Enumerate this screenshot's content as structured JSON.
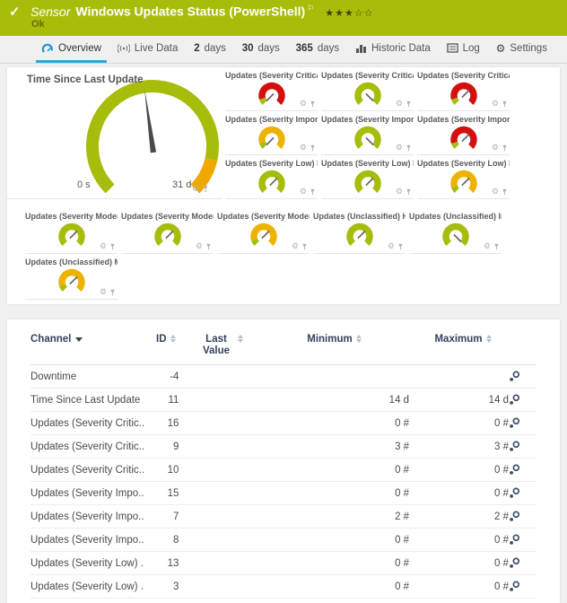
{
  "colors": {
    "header_green": "#a8bd0a",
    "gauge_green": "#a7bd0b",
    "gauge_red": "#d40f0f",
    "gauge_yellow": "#eeb200",
    "gauge_orange": "#f0a800",
    "tab_active_blue": "#2ba7df",
    "table_header_navy": "#33425b"
  },
  "header": {
    "status_icon": "check-icon",
    "sensor_label": "Sensor",
    "title": "Windows Updates Status (PowerShell)",
    "flag_icon": "flag-icon",
    "rating": "★★★☆☆",
    "status": "Ok"
  },
  "tabs": [
    {
      "label": "Overview",
      "icon": "gauge-icon",
      "active": true
    },
    {
      "label": "Live Data",
      "icon": "signal-icon",
      "active": false
    },
    {
      "num": "2",
      "label": "days",
      "active": false
    },
    {
      "num": "30",
      "label": "days",
      "active": false
    },
    {
      "num": "365",
      "label": "days",
      "active": false
    },
    {
      "label": "Historic Data",
      "icon": "bar-chart-icon",
      "active": false
    },
    {
      "label": "Log",
      "icon": "log-icon",
      "active": false
    },
    {
      "label": "Settings",
      "icon": "gear-icon",
      "active": false
    }
  ],
  "main_gauge": {
    "title": "Time Since Last Update",
    "min_label": "0 s",
    "max_label": "31 d",
    "needle_compass_deg": 352,
    "segments": [
      {
        "color": "#a7bd0b",
        "from_deg": 225,
        "to_deg": 102.6
      },
      {
        "color": "#f0a800",
        "from_deg": 102.6,
        "to_deg": 135
      }
    ],
    "action_icons": [
      "gear-icon",
      "pin-icon"
    ]
  },
  "small_gauges": [
    {
      "label": "Updates (Severity Critical) Hi...",
      "status": "red",
      "needle_deg": 225
    },
    {
      "label": "Updates (Severity Critical) Ins...",
      "status": "green",
      "needle_deg": 135
    },
    {
      "label": "Updates (Severity Critical) Mi...",
      "status": "red",
      "needle_deg": 45
    },
    {
      "label": "Updates (Severity Important) ...",
      "status": "yellow",
      "needle_deg": 225
    },
    {
      "label": "Updates (Severity Important) ...",
      "status": "green",
      "needle_deg": 135
    },
    {
      "label": "Updates (Severity Important) ...",
      "status": "red",
      "needle_deg": 45
    },
    {
      "label": "Updates (Severity Low) Hidden",
      "status": "green",
      "needle_deg": 45
    },
    {
      "label": "Updates (Severity Low) Install...",
      "status": "green",
      "needle_deg": 45
    },
    {
      "label": "Updates (Severity Low) Missi...",
      "status": "yellow",
      "needle_deg": 45
    },
    {
      "label": "Updates (Severity Moderate) ...",
      "status": "green",
      "needle_deg": 45
    },
    {
      "label": "Updates (Severity Moderate) I...",
      "status": "green",
      "needle_deg": 45
    },
    {
      "label": "Updates (Severity Moderate) ...",
      "status": "yellow",
      "needle_deg": 45
    },
    {
      "label": "Updates (Unclassified) Hidden",
      "status": "green",
      "needle_deg": 45
    },
    {
      "label": "Updates (Unclassified) Install...",
      "status": "green",
      "needle_deg": 135
    },
    {
      "label": "Updates (Unclassified) Missing",
      "status": "yellow",
      "needle_deg": 45
    }
  ],
  "table": {
    "columns": [
      {
        "label": "Channel",
        "sort": "desc"
      },
      {
        "label": "ID",
        "sort": "both"
      },
      {
        "label": "Last Value",
        "sort": "both"
      },
      {
        "label": "Minimum",
        "sort": "both"
      },
      {
        "label": "Maximum",
        "sort": "both"
      }
    ],
    "row_action_icon": "channel-settings-icon",
    "rows": [
      {
        "channel": "Downtime",
        "id": "-4",
        "last": "",
        "min": "",
        "max": ""
      },
      {
        "channel": "Time Since Last Update",
        "id": "11",
        "last": "",
        "min": "14 d",
        "max": "14 d"
      },
      {
        "channel": "Updates (Severity Critic...",
        "id": "16",
        "last": "",
        "min": "0 #",
        "max": "0 #"
      },
      {
        "channel": "Updates (Severity Critic...",
        "id": "9",
        "last": "",
        "min": "3 #",
        "max": "3 #"
      },
      {
        "channel": "Updates (Severity Critic...",
        "id": "10",
        "last": "",
        "min": "0 #",
        "max": "0 #"
      },
      {
        "channel": "Updates (Severity Impo...",
        "id": "15",
        "last": "",
        "min": "0 #",
        "max": "0 #"
      },
      {
        "channel": "Updates (Severity Impo...",
        "id": "7",
        "last": "",
        "min": "2 #",
        "max": "2 #"
      },
      {
        "channel": "Updates (Severity Impo...",
        "id": "8",
        "last": "",
        "min": "0 #",
        "max": "0 #"
      },
      {
        "channel": "Updates (Severity Low) ...",
        "id": "13",
        "last": "",
        "min": "0 #",
        "max": "0 #"
      },
      {
        "channel": "Updates (Severity Low) ...",
        "id": "3",
        "last": "",
        "min": "0 #",
        "max": "0 #"
      }
    ]
  }
}
